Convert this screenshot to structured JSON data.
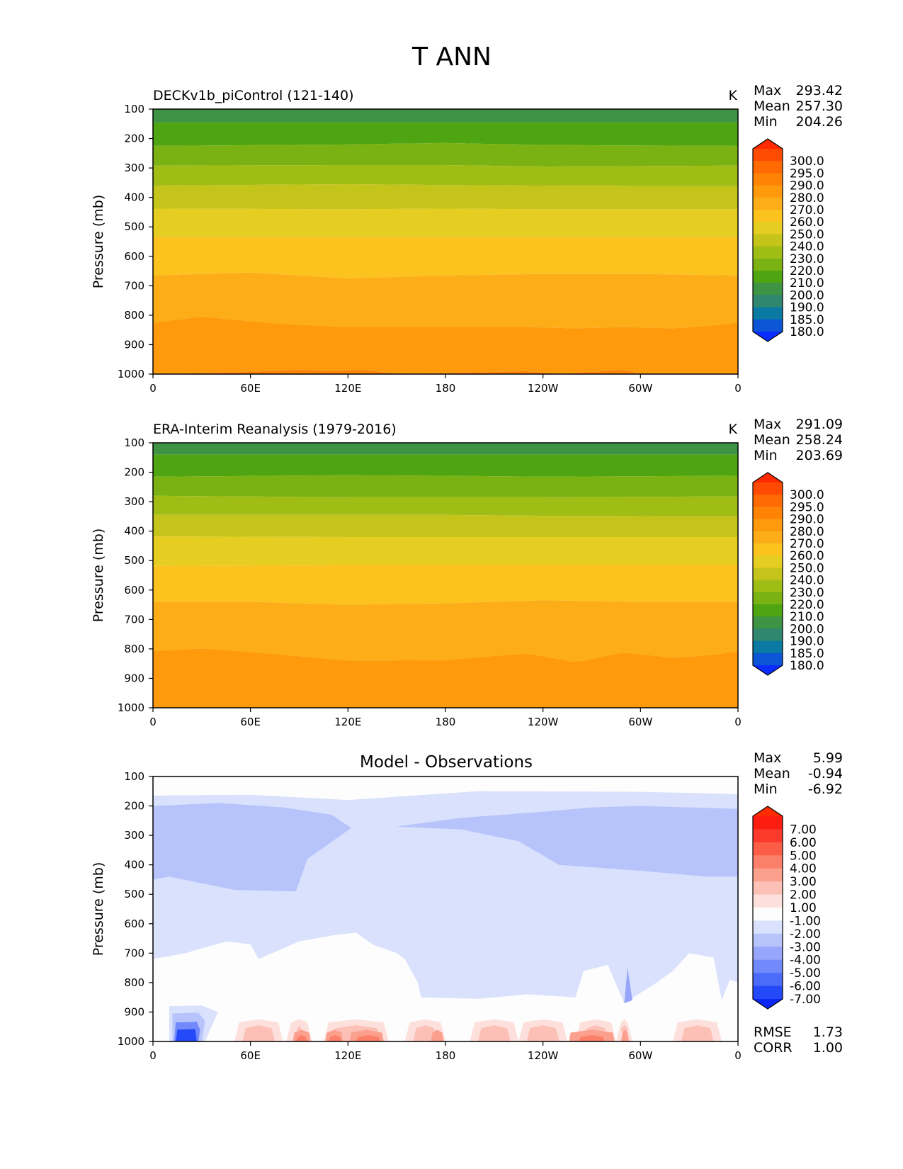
{
  "figure": {
    "title": "T ANN"
  },
  "colors": {
    "temp_levels": [
      180,
      185,
      190,
      200,
      210,
      220,
      230,
      240,
      250,
      260,
      270,
      280,
      290,
      295,
      300
    ],
    "temp_fills": [
      "#0a2cff",
      "#0b55d6",
      "#0a7aa3",
      "#2f8770",
      "#3e9345",
      "#4ea411",
      "#7bb213",
      "#a0bd16",
      "#c4c41b",
      "#e6cd22",
      "#fcc31f",
      "#fdad18",
      "#fe9a0c",
      "#ff8305",
      "#ff6a02",
      "#ff4b01",
      "#ff2a00"
    ],
    "diff_levels": [
      -7,
      -6,
      -5,
      -4,
      -3,
      -2,
      -1,
      1,
      2,
      3,
      4,
      5,
      6,
      7
    ],
    "diff_fills": [
      "#0b27f7",
      "#2449f9",
      "#4b6bfb",
      "#7289fb",
      "#97a6fb",
      "#b7c4fb",
      "#d9e1fc",
      "#fdfdfd",
      "#fde0dc",
      "#fcc0b6",
      "#fca08e",
      "#fc7f69",
      "#fb5d47",
      "#fb3a2c",
      "#fc1c10",
      "#ff2a00"
    ]
  },
  "chart_data": [
    {
      "type": "contour",
      "title": "DECKv1b_piControl (121-140)",
      "units": "K",
      "ylabel": "Pressure (mb)",
      "x_ticks": [
        "0",
        "60E",
        "120E",
        "180",
        "120W",
        "60W",
        "0"
      ],
      "y_ticks": [
        "100",
        "200",
        "300",
        "400",
        "500",
        "600",
        "700",
        "800",
        "900",
        "1000"
      ],
      "xlim": [
        0,
        360
      ],
      "ylim": [
        1000,
        100
      ],
      "stats": [
        {
          "label": "Max",
          "value": "293.42"
        },
        {
          "label": "Mean",
          "value": "257.30"
        },
        {
          "label": "Min",
          "value": "204.26"
        }
      ],
      "colorbar_labels": [
        "300.0",
        "295.0",
        "290.0",
        "280.0",
        "270.0",
        "260.0",
        "250.0",
        "240.0",
        "230.0",
        "220.0",
        "210.0",
        "200.0",
        "190.0",
        "185.0",
        "180.0"
      ],
      "contour_bands": [
        {
          "fill": "#2f8770",
          "top": 100,
          "bottom": 100
        },
        {
          "fill": "#3e9345",
          "top": 100,
          "bottom": 145
        },
        {
          "fill": "#4ea411",
          "top": 145,
          "bottom": [
            [
              0,
              225
            ],
            [
              120,
              220
            ],
            [
              180,
              215
            ],
            [
              240,
              222
            ],
            [
              360,
              225
            ]
          ]
        },
        {
          "fill": "#7bb213",
          "top": "prev",
          "bottom": [
            [
              0,
              292
            ],
            [
              120,
              290
            ],
            [
              180,
              290
            ],
            [
              240,
              295
            ],
            [
              360,
              292
            ]
          ]
        },
        {
          "fill": "#a0bd16",
          "top": "prev",
          "bottom": [
            [
              0,
              360
            ],
            [
              120,
              355
            ],
            [
              180,
              358
            ],
            [
              240,
              360
            ],
            [
              360,
              362
            ]
          ]
        },
        {
          "fill": "#c4c41b",
          "top": "prev",
          "bottom": [
            [
              0,
              438
            ],
            [
              120,
              440
            ],
            [
              180,
              438
            ],
            [
              240,
              440
            ],
            [
              360,
              440
            ]
          ]
        },
        {
          "fill": "#e6cd22",
          "top": "prev",
          "bottom": [
            [
              0,
              535
            ],
            [
              120,
              535
            ],
            [
              180,
              535
            ],
            [
              240,
              535
            ],
            [
              360,
              535
            ]
          ]
        },
        {
          "fill": "#fcc31f",
          "top": "prev",
          "bottom": [
            [
              0,
              665
            ],
            [
              60,
              655
            ],
            [
              120,
              675
            ],
            [
              180,
              665
            ],
            [
              240,
              660
            ],
            [
              300,
              660
            ],
            [
              360,
              665
            ]
          ]
        },
        {
          "fill": "#fdad18",
          "top": "prev",
          "bottom": [
            [
              0,
              825
            ],
            [
              30,
              805
            ],
            [
              60,
              820
            ],
            [
              80,
              830
            ],
            [
              120,
              840
            ],
            [
              180,
              840
            ],
            [
              230,
              840
            ],
            [
              260,
              845
            ],
            [
              290,
              840
            ],
            [
              320,
              845
            ],
            [
              345,
              835
            ],
            [
              360,
              825
            ]
          ]
        },
        {
          "fill": "#fe9a0c",
          "top": "prev",
          "bottom": [
            [
              0,
              1000
            ],
            [
              40,
              995
            ],
            [
              70,
              990
            ],
            [
              90,
              985
            ],
            [
              110,
              990
            ],
            [
              130,
              985
            ],
            [
              150,
              1000
            ],
            [
              230,
              990
            ],
            [
              250,
              1000
            ],
            [
              290,
              985
            ],
            [
              300,
              1000
            ],
            [
              360,
              1000
            ]
          ]
        },
        {
          "fill": "#ff8305",
          "top": "prev",
          "bottom": 1000
        }
      ]
    },
    {
      "type": "contour",
      "title": "ERA-Interim Reanalysis (1979-2016)",
      "units": "K",
      "ylabel": "Pressure (mb)",
      "x_ticks": [
        "0",
        "60E",
        "120E",
        "180",
        "120W",
        "60W",
        "0"
      ],
      "y_ticks": [
        "100",
        "200",
        "300",
        "400",
        "500",
        "600",
        "700",
        "800",
        "900",
        "1000"
      ],
      "xlim": [
        0,
        360
      ],
      "ylim": [
        1000,
        100
      ],
      "stats": [
        {
          "label": "Max",
          "value": "291.09"
        },
        {
          "label": "Mean",
          "value": "258.24"
        },
        {
          "label": "Min",
          "value": "203.69"
        }
      ],
      "colorbar_labels": [
        "300.0",
        "295.0",
        "290.0",
        "280.0",
        "270.0",
        "260.0",
        "250.0",
        "240.0",
        "230.0",
        "220.0",
        "210.0",
        "200.0",
        "190.0",
        "185.0",
        "180.0"
      ],
      "contour_bands": [
        {
          "fill": "#3e9345",
          "top": 100,
          "bottom": 140
        },
        {
          "fill": "#4ea411",
          "top": 140,
          "bottom": [
            [
              0,
              215
            ],
            [
              120,
              210
            ],
            [
              180,
              212
            ],
            [
              240,
              215
            ],
            [
              360,
              212
            ]
          ]
        },
        {
          "fill": "#7bb213",
          "top": "prev",
          "bottom": [
            [
              0,
              280
            ],
            [
              120,
              285
            ],
            [
              180,
              285
            ],
            [
              240,
              285
            ],
            [
              360,
              282
            ]
          ]
        },
        {
          "fill": "#a0bd16",
          "top": "prev",
          "bottom": [
            [
              0,
              345
            ],
            [
              120,
              345
            ],
            [
              180,
              345
            ],
            [
              240,
              348
            ],
            [
              360,
              350
            ]
          ]
        },
        {
          "fill": "#c4c41b",
          "top": "prev",
          "bottom": [
            [
              0,
              418
            ],
            [
              120,
              420
            ],
            [
              180,
              420
            ],
            [
              240,
              420
            ],
            [
              360,
              420
            ]
          ]
        },
        {
          "fill": "#e6cd22",
          "top": "prev",
          "bottom": [
            [
              0,
              518
            ],
            [
              120,
              515
            ],
            [
              180,
              515
            ],
            [
              240,
              515
            ],
            [
              360,
              515
            ]
          ]
        },
        {
          "fill": "#fcc31f",
          "top": "prev",
          "bottom": [
            [
              0,
              640
            ],
            [
              60,
              640
            ],
            [
              120,
              650
            ],
            [
              180,
              645
            ],
            [
              240,
              635
            ],
            [
              300,
              640
            ],
            [
              360,
              640
            ]
          ]
        },
        {
          "fill": "#fdad18",
          "top": "prev",
          "bottom": [
            [
              0,
              808
            ],
            [
              30,
              798
            ],
            [
              60,
              810
            ],
            [
              100,
              830
            ],
            [
              120,
              840
            ],
            [
              180,
              838
            ],
            [
              230,
              815
            ],
            [
              260,
              845
            ],
            [
              290,
              812
            ],
            [
              320,
              830
            ],
            [
              345,
              820
            ],
            [
              360,
              808
            ]
          ]
        },
        {
          "fill": "#fe9a0c",
          "top": "prev",
          "bottom": 1000
        }
      ]
    },
    {
      "type": "contour",
      "title": "Model - Observations",
      "units": "",
      "ylabel": "Pressure (mb)",
      "x_ticks": [
        "0",
        "60E",
        "120E",
        "180",
        "120W",
        "60W",
        "0"
      ],
      "y_ticks": [
        "100",
        "200",
        "300",
        "400",
        "500",
        "600",
        "700",
        "800",
        "900",
        "1000"
      ],
      "xlim": [
        0,
        360
      ],
      "ylim": [
        1000,
        100
      ],
      "stats": [
        {
          "label": "Max",
          "value": "5.99"
        },
        {
          "label": "Mean",
          "value": "-0.94"
        },
        {
          "label": "Min",
          "value": "-6.92"
        }
      ],
      "extra_stats": [
        {
          "label": "RMSE",
          "value": "1.73"
        },
        {
          "label": "CORR",
          "value": "1.00"
        }
      ],
      "colorbar_labels": [
        "7.00",
        "6.00",
        "5.00",
        "4.00",
        "3.00",
        "2.00",
        "1.00",
        "-1.00",
        "-2.00",
        "-3.00",
        "-4.00",
        "-5.00",
        "-6.00",
        "-7.00"
      ]
    }
  ]
}
